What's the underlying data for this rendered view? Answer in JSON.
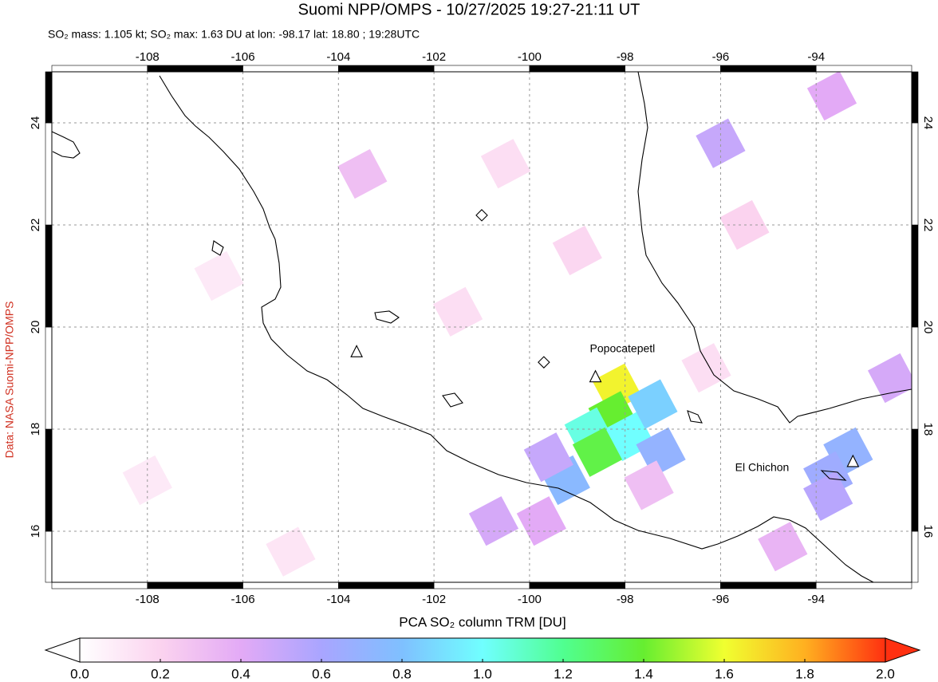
{
  "map": {
    "title": "Suomi NPP/OMPS - 10/27/2025 19:27-21:11 UT",
    "subtitle": "SO₂ mass: 1.105 kt; SO₂ max: 1.63 DU at lon: -98.17 lat: 18.80 ; 19:28UTC",
    "credit": "Data: NASA Suomi-NPP/OMPS",
    "xlim": [
      -110,
      -92
    ],
    "ylim": [
      15,
      25
    ],
    "xticks": [
      -108,
      -106,
      -104,
      -102,
      -100,
      -98,
      -96,
      -94
    ],
    "yticks": [
      16,
      18,
      20,
      22,
      24
    ],
    "grid": true,
    "so2_cells": [
      {
        "lon": -98.17,
        "lat": 18.8,
        "value": 1.63
      },
      {
        "lon": -98.25,
        "lat": 18.26,
        "value": 1.4
      },
      {
        "lon": -98.75,
        "lat": 17.94,
        "value": 1.05
      },
      {
        "lon": -97.9,
        "lat": 17.86,
        "value": 1.0
      },
      {
        "lon": -98.58,
        "lat": 17.55,
        "value": 1.35
      },
      {
        "lon": -97.42,
        "lat": 18.49,
        "value": 0.85
      },
      {
        "lon": -97.25,
        "lat": 17.55,
        "value": 0.7
      },
      {
        "lon": -99.25,
        "lat": 17.0,
        "value": 0.75
      },
      {
        "lon": -99.6,
        "lat": 17.45,
        "value": 0.5
      },
      {
        "lon": -93.33,
        "lat": 17.55,
        "value": 0.7
      },
      {
        "lon": -93.75,
        "lat": 17.08,
        "value": 0.65
      },
      {
        "lon": -93.75,
        "lat": 16.69,
        "value": 0.55
      },
      {
        "lon": -100.75,
        "lat": 16.2,
        "value": 0.45
      },
      {
        "lon": -99.75,
        "lat": 16.2,
        "value": 0.4
      },
      {
        "lon": -96.0,
        "lat": 23.6,
        "value": 0.5
      },
      {
        "lon": -93.67,
        "lat": 24.53,
        "value": 0.4
      },
      {
        "lon": -103.5,
        "lat": 23.0,
        "value": 0.3
      },
      {
        "lon": -94.7,
        "lat": 15.7,
        "value": 0.35
      },
      {
        "lon": -97.5,
        "lat": 16.9,
        "value": 0.3
      },
      {
        "lon": -100.5,
        "lat": 23.2,
        "value": 0.15
      },
      {
        "lon": -101.5,
        "lat": 20.3,
        "value": 0.15
      },
      {
        "lon": -106.5,
        "lat": 21.0,
        "value": 0.1
      },
      {
        "lon": -95.5,
        "lat": 22.0,
        "value": 0.2
      },
      {
        "lon": -92.4,
        "lat": 19.0,
        "value": 0.45
      },
      {
        "lon": -108.0,
        "lat": 17.0,
        "value": 0.1
      },
      {
        "lon": -96.3,
        "lat": 19.2,
        "value": 0.15
      },
      {
        "lon": -105.0,
        "lat": 15.6,
        "value": 0.12
      },
      {
        "lon": -99.0,
        "lat": 21.5,
        "value": 0.18
      }
    ],
    "markers": [
      {
        "name": "Popocatepetl",
        "lon": -98.62,
        "lat": 19.02,
        "shape": "triangle",
        "label_side": "above"
      },
      {
        "name": "El Chichon",
        "lon": -93.23,
        "lat": 17.36,
        "shape": "triangle",
        "label_side": "left"
      },
      {
        "lon": -103.62,
        "lat": 19.51,
        "shape": "triangle"
      },
      {
        "lon": -101.0,
        "lat": 22.19,
        "shape": "diamond"
      },
      {
        "lon": -99.7,
        "lat": 19.31,
        "shape": "diamond"
      }
    ],
    "colorbar": {
      "label": "PCA SO₂ column TRM [DU]",
      "lim": [
        0,
        2
      ],
      "ticks": [
        {
          "value": 0,
          "label": "0.0"
        },
        0.2,
        0.4,
        0.6,
        0.8,
        {
          "value": 1,
          "label": "1.0"
        },
        1.2,
        1.4,
        1.6,
        1.8,
        {
          "value": 2,
          "label": "2.0"
        }
      ],
      "colors": [
        "#ffffff",
        "#fbd3ef",
        "#e3aaf6",
        "#a9a5ff",
        "#7fc0ff",
        "#70ffff",
        "#50ff90",
        "#66ee30",
        "#f0ff30",
        "#ffb020",
        "#ff3010"
      ]
    }
  }
}
